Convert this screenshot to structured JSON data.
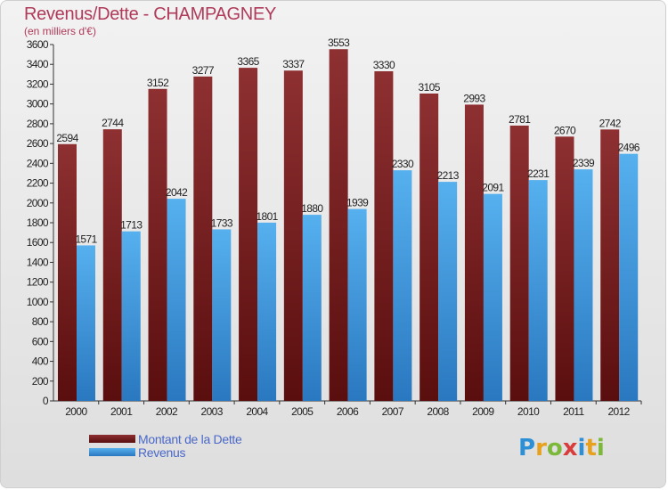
{
  "title": "Revenus/Dette - CHAMPAGNEY",
  "subtitle": "(en milliers d'€)",
  "logo": {
    "letters": [
      "P",
      "r",
      "o",
      "x",
      "i",
      "t",
      "i"
    ],
    "colors": [
      "#2d8fd6",
      "#e8a11e",
      "#7cb83a",
      "#d93c3c",
      "#2d8fd6",
      "#e8a11e",
      "#7cb83a"
    ]
  },
  "chart_data": {
    "type": "bar",
    "title": "Revenus/Dette - CHAMPAGNEY",
    "subtitle": "(en milliers d'€)",
    "categories": [
      "2000",
      "2001",
      "2002",
      "2003",
      "2004",
      "2005",
      "2006",
      "2007",
      "2008",
      "2009",
      "2010",
      "2011",
      "2012"
    ],
    "series": [
      {
        "name": "Montant de la Dette",
        "values": [
          2594,
          2744,
          3152,
          3277,
          3365,
          3337,
          3553,
          3330,
          3105,
          2993,
          2781,
          2670,
          2742
        ],
        "color": "#7a1c1c"
      },
      {
        "name": "Revenus",
        "values": [
          1571,
          1713,
          2042,
          1733,
          1801,
          1880,
          1939,
          2330,
          2213,
          2091,
          2231,
          2339,
          2496
        ],
        "color": "#3d9ce0"
      }
    ],
    "ylim": [
      0,
      3600
    ],
    "yticks": [
      0,
      200,
      400,
      600,
      800,
      1000,
      1200,
      1400,
      1600,
      1800,
      2000,
      2200,
      2400,
      2600,
      2800,
      3000,
      3200,
      3400,
      3600
    ],
    "grid": false,
    "legend_position": "bottom-left"
  }
}
